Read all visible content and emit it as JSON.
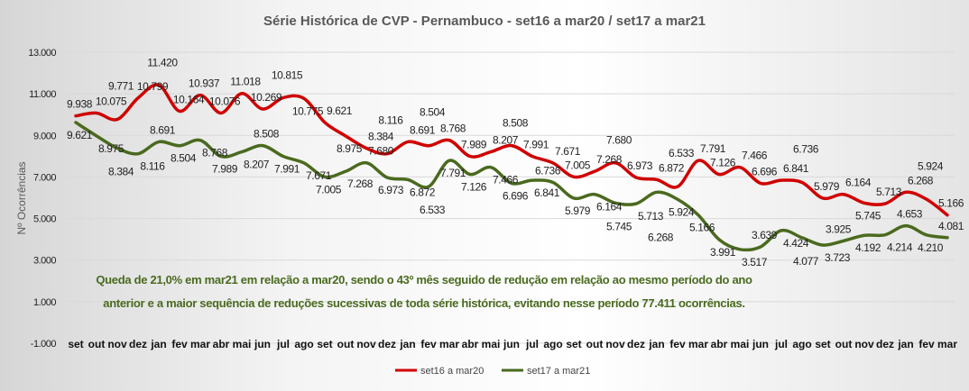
{
  "chart_data": {
    "type": "line",
    "title": "Série Histórica de CVP - Pernambuco - set16 a mar20 /  set17 a mar21",
    "ylabel": "Nº Ocorrências",
    "xlabel": "",
    "ylim": [
      -1000,
      13000
    ],
    "yticks": [
      "13.000",
      "11.000",
      "9.000",
      "7.000",
      "5.000",
      "3.000",
      "1.000",
      "-1.000"
    ],
    "ytick_values": [
      13000,
      11000,
      9000,
      7000,
      5000,
      3000,
      1000,
      -1000
    ],
    "grid": true,
    "legend": "bottom",
    "categories": [
      "set",
      "out",
      "nov",
      "dez",
      "jan",
      "fev",
      "mar",
      "abr",
      "mai",
      "jun",
      "jul",
      "ago",
      "set",
      "out",
      "nov",
      "dez",
      "jan",
      "fev",
      "mar",
      "abr",
      "mai",
      "jun",
      "jul",
      "ago",
      "set",
      "out",
      "nov",
      "dez",
      "jan",
      "fev",
      "mar",
      "abr",
      "mai",
      "jun",
      "jul",
      "ago",
      "set",
      "out",
      "nov",
      "dez",
      "jan",
      "fev",
      "mar"
    ],
    "series": [
      {
        "name": "set16 a mar20",
        "color": "#d00000",
        "values": [
          9938,
          10075,
          9771,
          10799,
          11420,
          10164,
          10937,
          10076,
          11018,
          10269,
          10815,
          10775,
          9621,
          8975,
          8384,
          8116,
          8691,
          8504,
          8768,
          7989,
          8207,
          8508,
          7991,
          7671,
          7005,
          7268,
          7680,
          6973,
          6872,
          6533,
          7791,
          7126,
          7466,
          6696,
          6841,
          6736,
          5979,
          6164,
          5745,
          5713,
          6268,
          5924,
          5166
        ],
        "labels": [
          "9.938",
          "10.075",
          "9.771",
          "10.799",
          "11.420",
          "10.164",
          "10.937",
          "10.076",
          "11.018",
          "10.269",
          "10.815",
          "10.775",
          "9.621",
          "8.975",
          "8.384",
          "8.116",
          "8.691",
          "8.504",
          "8.768",
          "7.989",
          "8.207",
          "8.508",
          "7.991",
          "7.671",
          "7.005",
          "7.268",
          "7.680",
          "6.973",
          "6.872",
          "6.533",
          "7.791",
          "7.126",
          "7.466",
          "6.696",
          "6.841",
          "6.736",
          "5.979",
          "6.164",
          "5.745",
          "5.713",
          "6.268",
          "5.924",
          "5.166"
        ]
      },
      {
        "name": "set17 a mar21",
        "color": "#4a6a1e",
        "values": [
          9621,
          8975,
          8384,
          8116,
          8691,
          8504,
          8768,
          7989,
          8207,
          8508,
          7991,
          7671,
          7005,
          7268,
          7680,
          6973,
          6872,
          6533,
          7791,
          7126,
          7466,
          6696,
          6841,
          6736,
          5979,
          6164,
          5745,
          5713,
          6268,
          5924,
          5166,
          3991,
          3517,
          3639,
          4424,
          4077,
          3723,
          3925,
          4192,
          4214,
          4653,
          4210,
          4081
        ],
        "labels": [
          "9.621",
          "8.975",
          "8.384",
          "8.116",
          "8.691",
          "8.504",
          "8.768",
          "7.989",
          "8.207",
          "8.508",
          "7.991",
          "7.671",
          "7.005",
          "7.268",
          "7.680",
          "6.973",
          "6.872",
          "6.533",
          "7.791",
          "7.126",
          "7.466",
          "6.696",
          "6.841",
          "6.736",
          "5.979",
          "6.164",
          "5.745",
          "5.713",
          "6.268",
          "5.924",
          "5.166",
          "3.991",
          "3.517",
          "3.639",
          "4.424",
          "4.077",
          "3.723",
          "3.925",
          "4.192",
          "4.214",
          "4.653",
          "4.210",
          "4.081"
        ]
      }
    ],
    "annotation": {
      "line1": "Queda de 21,0% em mar21 em relação a mar20, sendo o 43º mês seguido de redução em relação ao mesmo período do ano",
      "line2": "anterior e a maior sequência de reduções sucessivas de toda série histórica, evitando nesse período 77.411 ocorrências."
    }
  }
}
